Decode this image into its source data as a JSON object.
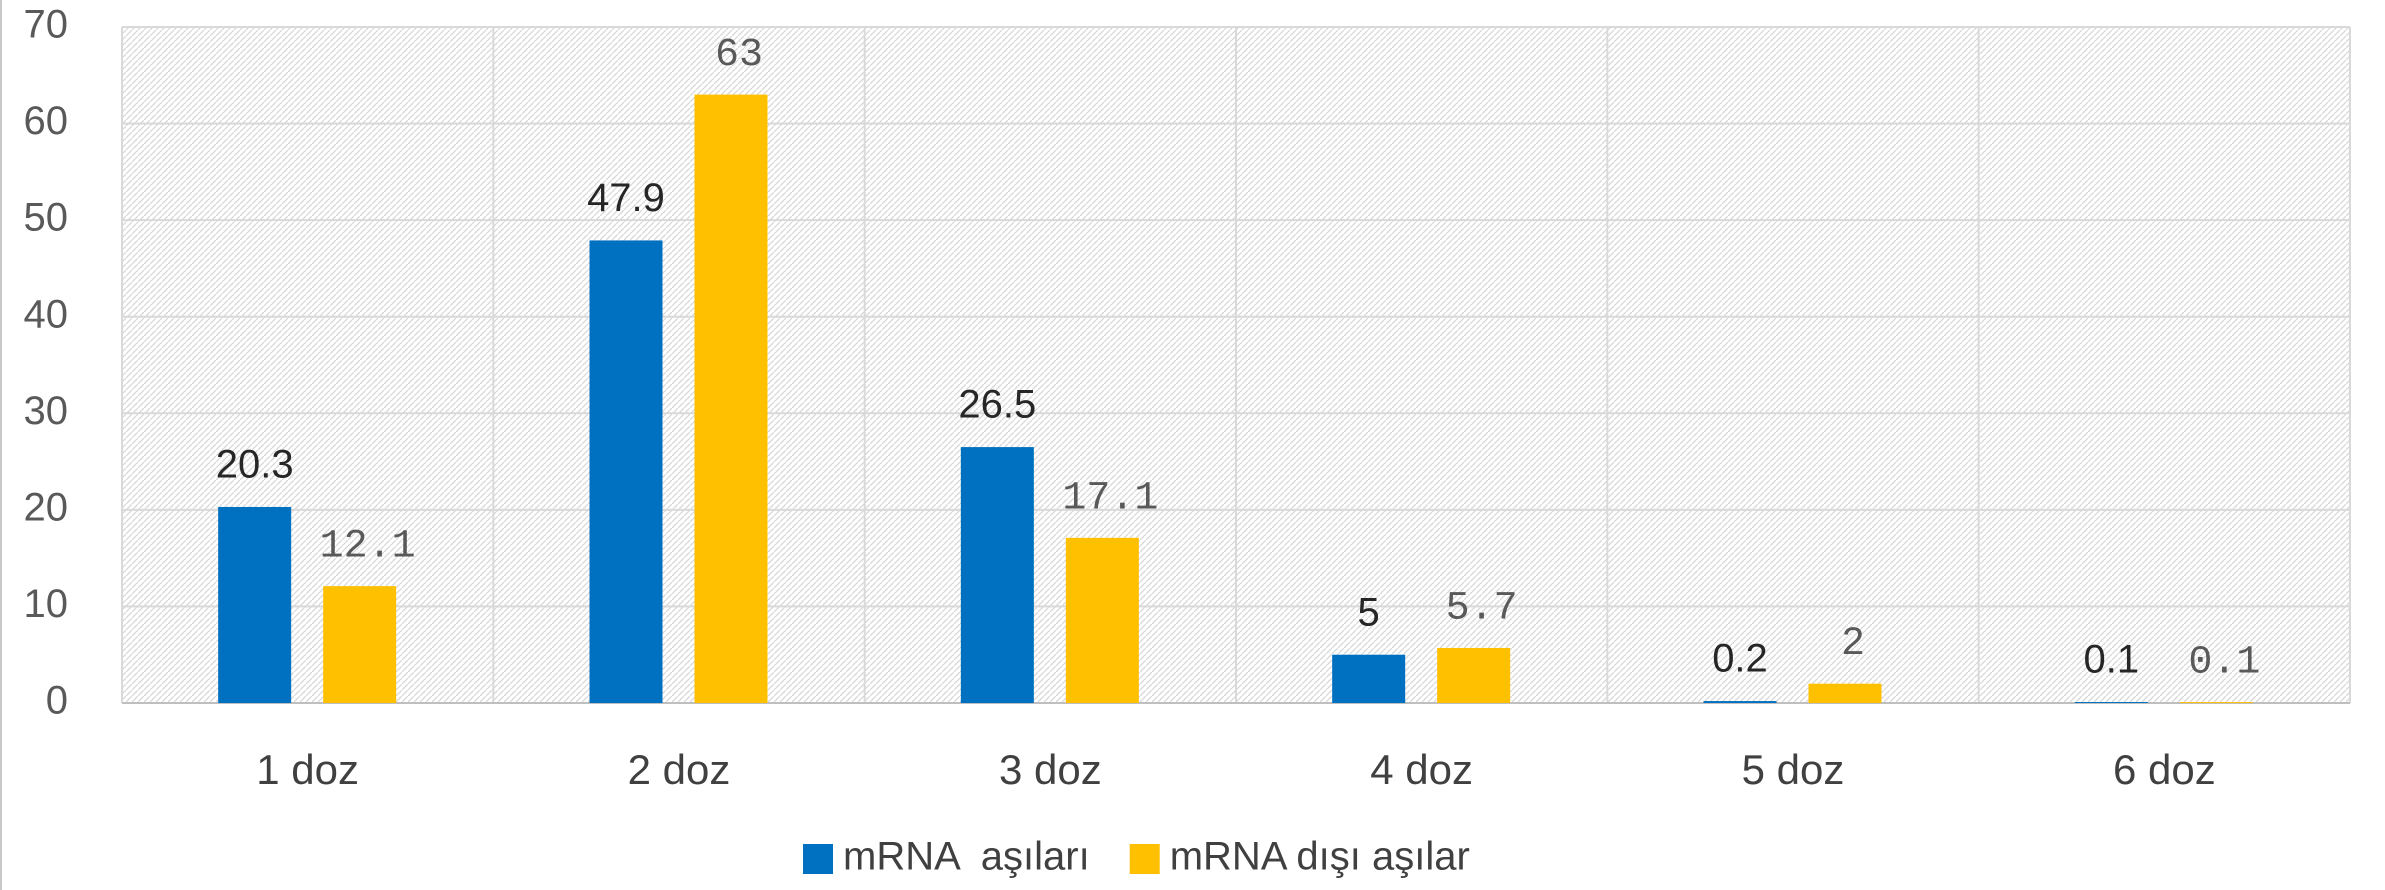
{
  "chart_data": {
    "type": "bar",
    "categories": [
      "1 doz",
      "2 doz",
      "3 doz",
      "4 doz",
      "5 doz",
      "6 doz"
    ],
    "series": [
      {
        "name": "mRNA  aşıları",
        "color": "#0070c0",
        "values": [
          20.3,
          47.9,
          26.5,
          5,
          0.2,
          0.1
        ]
      },
      {
        "name": "mRNA dışı aşılar",
        "color": "#ffc000",
        "values": [
          12.1,
          63,
          17.1,
          5.7,
          2,
          0.1
        ]
      }
    ],
    "ylim": [
      0,
      70
    ],
    "yticks": [
      0,
      10,
      20,
      30,
      40,
      50,
      60,
      70
    ],
    "grid": true,
    "legend": "bottom"
  }
}
